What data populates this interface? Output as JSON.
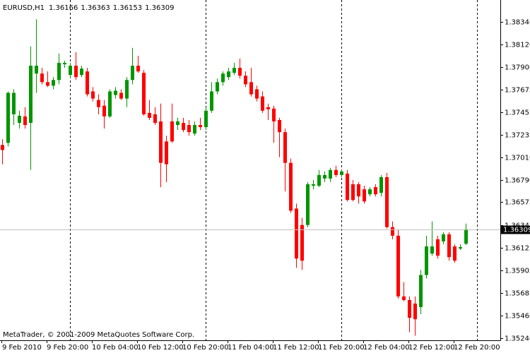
{
  "chart_data": {
    "type": "candlestick",
    "title": "EURUSD,H1",
    "watermark": "MetaTrader, © 2001-2009 MetaQuotes Software Corp.",
    "categories": [
      "9 Feb 2010",
      null,
      null,
      null,
      null,
      null,
      null,
      null,
      "9 Feb 20:00",
      null,
      null,
      null,
      null,
      null,
      null,
      null,
      "10 Feb 04:00",
      null,
      null,
      null,
      null,
      null,
      null,
      null,
      "10 Feb 12:00",
      null,
      null,
      null,
      null,
      null,
      null,
      null,
      "10 Feb 20:00",
      null,
      null,
      null,
      null,
      null,
      null,
      null,
      "11 Feb 04:00",
      null,
      null,
      null,
      null,
      null,
      null,
      null,
      "11 Feb 12:00",
      null,
      null,
      null,
      null,
      null,
      null,
      null,
      "11 Feb 20:00",
      null,
      null,
      null,
      null,
      null,
      null,
      null,
      "12 Feb 04:00",
      null,
      null,
      null,
      null,
      null,
      null,
      null,
      "12 Feb 12:00",
      null,
      null,
      null,
      null,
      null,
      null,
      null,
      "12 Feb 20:00",
      null,
      null
    ],
    "open": [
      1.37134,
      1.37155,
      1.37435,
      1.37351,
      1.37414,
      1.37351,
      1.37834,
      1.37834,
      1.3775,
      1.37715,
      1.37771,
      1.37925,
      1.3782,
      1.37911,
      1.3782,
      1.37855,
      1.37659,
      1.37575,
      1.37519,
      1.37414,
      1.37624,
      1.37645,
      1.37589,
      1.37771,
      1.37911,
      1.37841,
      1.37449,
      1.37435,
      1.37365,
      1.37169,
      1.37365,
      1.3733,
      1.37351,
      1.3733,
      1.37246,
      1.3733,
      1.37309,
      1.3747,
      1.37659,
      1.3775,
      1.37799,
      1.37841,
      1.3789,
      1.37813,
      1.3775,
      1.3768,
      1.3761,
      1.37505,
      1.37491,
      1.37379,
      1.3726,
      1.36959,
      1.36511,
      1.3635,
      1.3635,
      1.36735,
      1.36735,
      1.36805,
      1.36805,
      1.36889,
      1.3684,
      1.36854,
      1.36749,
      1.36749,
      1.367,
      1.36651,
      1.36721,
      1.36665,
      1.36819,
      1.36329,
      1.36245,
      1.3565,
      1.35615,
      1.3558,
      1.35545,
      1.3586,
      1.3607,
      1.3621,
      1.36189,
      1.36259,
      1.3614,
      1.36119,
      1.36166
    ],
    "high": [
      1.3719,
      1.37659,
      1.3768,
      1.3747,
      1.37505,
      1.381,
      1.38366,
      1.3789,
      1.37855,
      1.37799,
      1.3803,
      1.3796,
      1.37939,
      1.38044,
      1.37911,
      1.3789,
      1.37701,
      1.37631,
      1.37575,
      1.3768,
      1.37701,
      1.3768,
      1.37799,
      1.38086,
      1.38009,
      1.37869,
      1.37575,
      1.37505,
      1.3754,
      1.37225,
      1.3754,
      1.374,
      1.374,
      1.37379,
      1.37365,
      1.374,
      1.37505,
      1.3775,
      1.37785,
      1.37855,
      1.3789,
      1.37939,
      1.37981,
      1.37855,
      1.3789,
      1.37715,
      1.37659,
      1.3754,
      1.37519,
      1.374,
      1.37295,
      1.37001,
      1.3656,
      1.3642,
      1.3677,
      1.36791,
      1.36889,
      1.36875,
      1.3691,
      1.36931,
      1.36889,
      1.36889,
      1.36791,
      1.3677,
      1.36735,
      1.36721,
      1.36749,
      1.3684,
      1.36861,
      1.36385,
      1.36301,
      1.3579,
      1.3565,
      1.3565,
      1.35909,
      1.36245,
      1.36385,
      1.36245,
      1.3628,
      1.3628,
      1.36161,
      1.36161,
      1.36363
    ],
    "low": [
      1.36945,
      1.3712,
      1.3733,
      1.37295,
      1.37295,
      1.36889,
      1.37645,
      1.37729,
      1.37701,
      1.3768,
      1.37729,
      1.3789,
      1.37785,
      1.37771,
      1.37799,
      1.3761,
      1.37561,
      1.37435,
      1.37295,
      1.374,
      1.37589,
      1.37575,
      1.37505,
      1.37729,
      1.37841,
      1.37421,
      1.37379,
      1.3733,
      1.36721,
      1.3677,
      1.37155,
      1.37281,
      1.3726,
      1.37225,
      1.37225,
      1.37281,
      1.37281,
      1.37449,
      1.37631,
      1.37715,
      1.37771,
      1.3782,
      1.37785,
      1.37701,
      1.3761,
      1.37561,
      1.37449,
      1.37379,
      1.37155,
      1.37015,
      1.36679,
      1.36469,
      1.3593,
      1.35909,
      1.36329,
      1.367,
      1.36721,
      1.3677,
      1.3677,
      1.36819,
      1.36819,
      1.36581,
      1.36581,
      1.3656,
      1.3656,
      1.3663,
      1.3663,
      1.3663,
      1.36315,
      1.3621,
      1.35629,
      1.35601,
      1.353,
      1.35265,
      1.35475,
      1.35825,
      1.36049,
      1.36021,
      1.36161,
      1.36,
      1.35979,
      1.36105,
      1.36153
    ],
    "close": [
      1.37085,
      1.37645,
      1.37645,
      1.37421,
      1.3733,
      1.37911,
      1.37911,
      1.3775,
      1.37715,
      1.37771,
      1.37939,
      1.37939,
      1.37911,
      1.37799,
      1.37883,
      1.37631,
      1.37589,
      1.37505,
      1.37414,
      1.37659,
      1.37666,
      1.37589,
      1.37771,
      1.37911,
      1.37855,
      1.37435,
      1.374,
      1.37351,
      1.36959,
      1.36945,
      1.37169,
      1.37365,
      1.37281,
      1.3726,
      1.3733,
      1.37309,
      1.3747,
      1.37659,
      1.3775,
      1.37834,
      1.37855,
      1.3789,
      1.37813,
      1.37729,
      1.37631,
      1.37589,
      1.3747,
      1.37484,
      1.37365,
      1.3726,
      1.36959,
      1.3649,
      1.36021,
      1.36,
      1.36749,
      1.36749,
      1.3684,
      1.3684,
      1.36889,
      1.3684,
      1.36875,
      1.36595,
      1.36595,
      1.3663,
      1.36581,
      1.367,
      1.36651,
      1.36819,
      1.36329,
      1.36245,
      1.3565,
      1.35615,
      1.3544,
      1.35426,
      1.3586,
      1.3614,
      1.3614,
      1.36049,
      1.36259,
      1.36035,
      1.36,
      1.36133,
      1.36309
    ],
    "up_color": "#009600",
    "down_color": "#ff0000",
    "ylim": [
      1.3522,
      1.38555
    ],
    "yticks": [
      {
        "value": 1.3834,
        "label": "1.38340"
      },
      {
        "value": 1.3812,
        "label": "1.38120"
      },
      {
        "value": 1.379,
        "label": "1.37900"
      },
      {
        "value": 1.37675,
        "label": "1.37675"
      },
      {
        "value": 1.37455,
        "label": "1.37455"
      },
      {
        "value": 1.37235,
        "label": "1.37235"
      },
      {
        "value": 1.3701,
        "label": "1.37010"
      },
      {
        "value": 1.3679,
        "label": "1.36790"
      },
      {
        "value": 1.36575,
        "label": "1.36575"
      },
      {
        "value": 1.36345,
        "label": "1.36345"
      },
      {
        "value": 1.36125,
        "label": "1.36125"
      },
      {
        "value": 1.35905,
        "label": "1.35905"
      },
      {
        "value": 1.35685,
        "label": "1.35685"
      },
      {
        "value": 1.3546,
        "label": "1.35460"
      },
      {
        "value": 1.3524,
        "label": "1.35240"
      }
    ],
    "grid": false
  }
}
